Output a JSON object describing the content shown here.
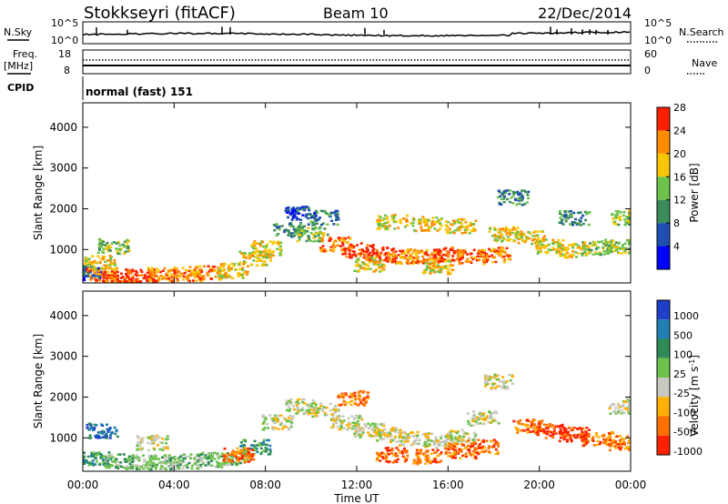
{
  "header": {
    "station": "Stokkseyri (fitACF)",
    "beam": "Beam 10",
    "date": "22/Dec/2014"
  },
  "top_panels": {
    "nsky_label": "N.Sky",
    "nsky_ticks": [
      "10^5",
      "10^0"
    ],
    "nsearch_label": "N.Search",
    "nsearch_ticks": [
      "10^5",
      "10^0"
    ],
    "freq_label_1": "Freq.",
    "freq_label_2": "[MHz]",
    "freq_ticks": [
      "18",
      "8"
    ],
    "nave_label": "Nave",
    "nave_ticks": [
      "60",
      "0"
    ],
    "cpid_label": "CPID",
    "cpid_value": "normal (fast) 151"
  },
  "chart_data": [
    {
      "type": "heatmap",
      "title": "",
      "xlabel": "Time UT",
      "ylabel": "Slant Range [km]",
      "x_ticks": [
        "00:00",
        "04:00",
        "08:00",
        "12:00",
        "16:00",
        "20:00",
        "00:00"
      ],
      "x_range_hours": [
        0,
        24
      ],
      "y_ticks": [
        "1000",
        "2000",
        "3000",
        "4000"
      ],
      "ylim": [
        180,
        4600
      ],
      "colorbar": {
        "label": "Power [dB]",
        "ticks": [
          "4",
          "8",
          "12",
          "16",
          "20",
          "24",
          "28"
        ],
        "colors": [
          "#0000ff",
          "#1f4fb0",
          "#3b8c5a",
          "#6cc24a",
          "#f7c600",
          "#ff8c00",
          "#ff2000"
        ]
      },
      "series": [
        {
          "values": [
            [
              0.2,
              450,
              1
            ],
            [
              0.8,
              400,
              5
            ],
            [
              1.5,
              350,
              6
            ],
            [
              2.5,
              360,
              6
            ],
            [
              3.5,
              400,
              5
            ],
            [
              4.5,
              420,
              5
            ],
            [
              5.5,
              450,
              5
            ],
            [
              6.5,
              500,
              4
            ],
            [
              7.5,
              800,
              4
            ],
            [
              8.0,
              1050,
              4
            ],
            [
              9.0,
              1500,
              2
            ],
            [
              10.0,
              1400,
              3
            ],
            [
              11.0,
              1150,
              5
            ],
            [
              12.0,
              1000,
              6
            ],
            [
              13.0,
              900,
              6
            ],
            [
              14.0,
              850,
              5
            ],
            [
              15.0,
              850,
              5
            ],
            [
              16.0,
              900,
              6
            ],
            [
              17.0,
              850,
              5
            ],
            [
              18.0,
              900,
              5
            ],
            [
              18.4,
              1400,
              4
            ],
            [
              18.8,
              2300,
              2
            ],
            [
              19.5,
              1300,
              4
            ],
            [
              20.5,
              1100,
              4
            ],
            [
              21.5,
              1000,
              4
            ],
            [
              22.5,
              1050,
              3
            ],
            [
              23.5,
              1100,
              3
            ],
            [
              23.8,
              1800,
              3
            ],
            [
              0.7,
              700,
              4
            ],
            [
              1.3,
              1100,
              3
            ],
            [
              13.5,
              1700,
              4
            ],
            [
              15.0,
              1650,
              4
            ],
            [
              16.5,
              1600,
              4
            ],
            [
              10.5,
              1800,
              2
            ],
            [
              12.5,
              650,
              4
            ],
            [
              15.5,
              600,
              4
            ],
            [
              9.5,
              1900,
              1
            ],
            [
              21.5,
              1800,
              2
            ]
          ]
        }
      ]
    },
    {
      "type": "heatmap",
      "title": "",
      "xlabel": "Time UT",
      "ylabel": "Slant Range [km]",
      "x_ticks": [
        "00:00",
        "04:00",
        "08:00",
        "12:00",
        "16:00",
        "20:00",
        "00:00"
      ],
      "x_range_hours": [
        0,
        24
      ],
      "y_ticks": [
        "1000",
        "2000",
        "3000",
        "4000"
      ],
      "ylim": [
        180,
        4600
      ],
      "colorbar": {
        "label": "Velocity [m s",
        "label_superscript": "-1",
        "label_close": "]",
        "ticks": [
          "1000",
          "500",
          "100",
          "25",
          "-25",
          "-100",
          "-500",
          "-1000"
        ],
        "colors": [
          "#1f3fc8",
          "#1f7fb0",
          "#2e8b57",
          "#6cc24a",
          "#c8c8c0",
          "#ffb000",
          "#ff7000",
          "#ff2000"
        ]
      },
      "series": [
        {
          "values": [
            [
              0.5,
              500,
              2
            ],
            [
              1.5,
              450,
              3
            ],
            [
              2.5,
              420,
              3
            ],
            [
              3.5,
              430,
              3
            ],
            [
              4.5,
              450,
              3
            ],
            [
              5.5,
              480,
              3
            ],
            [
              6.5,
              520,
              3
            ],
            [
              7.5,
              800,
              2
            ],
            [
              8.5,
              1400,
              4
            ],
            [
              9.5,
              1800,
              4
            ],
            [
              10.5,
              1700,
              4
            ],
            [
              11.5,
              1400,
              4
            ],
            [
              12.5,
              1200,
              4
            ],
            [
              13.5,
              1100,
              4
            ],
            [
              14.5,
              1000,
              4
            ],
            [
              15.5,
              950,
              4
            ],
            [
              16.5,
              1050,
              4
            ],
            [
              17.5,
              1500,
              4
            ],
            [
              18.2,
              2400,
              4
            ],
            [
              13.5,
              600,
              6
            ],
            [
              15.0,
              560,
              6
            ],
            [
              16.5,
              700,
              6
            ],
            [
              17.5,
              800,
              6
            ],
            [
              19.5,
              1300,
              6
            ],
            [
              20.5,
              1200,
              7
            ],
            [
              21.5,
              1100,
              7
            ],
            [
              22.5,
              1000,
              6
            ],
            [
              23.5,
              900,
              6
            ],
            [
              23.7,
              1800,
              4
            ],
            [
              3.0,
              900,
              4
            ],
            [
              0.8,
              1200,
              1
            ],
            [
              11.8,
              2000,
              6
            ],
            [
              6.8,
              600,
              6
            ]
          ]
        }
      ]
    }
  ]
}
